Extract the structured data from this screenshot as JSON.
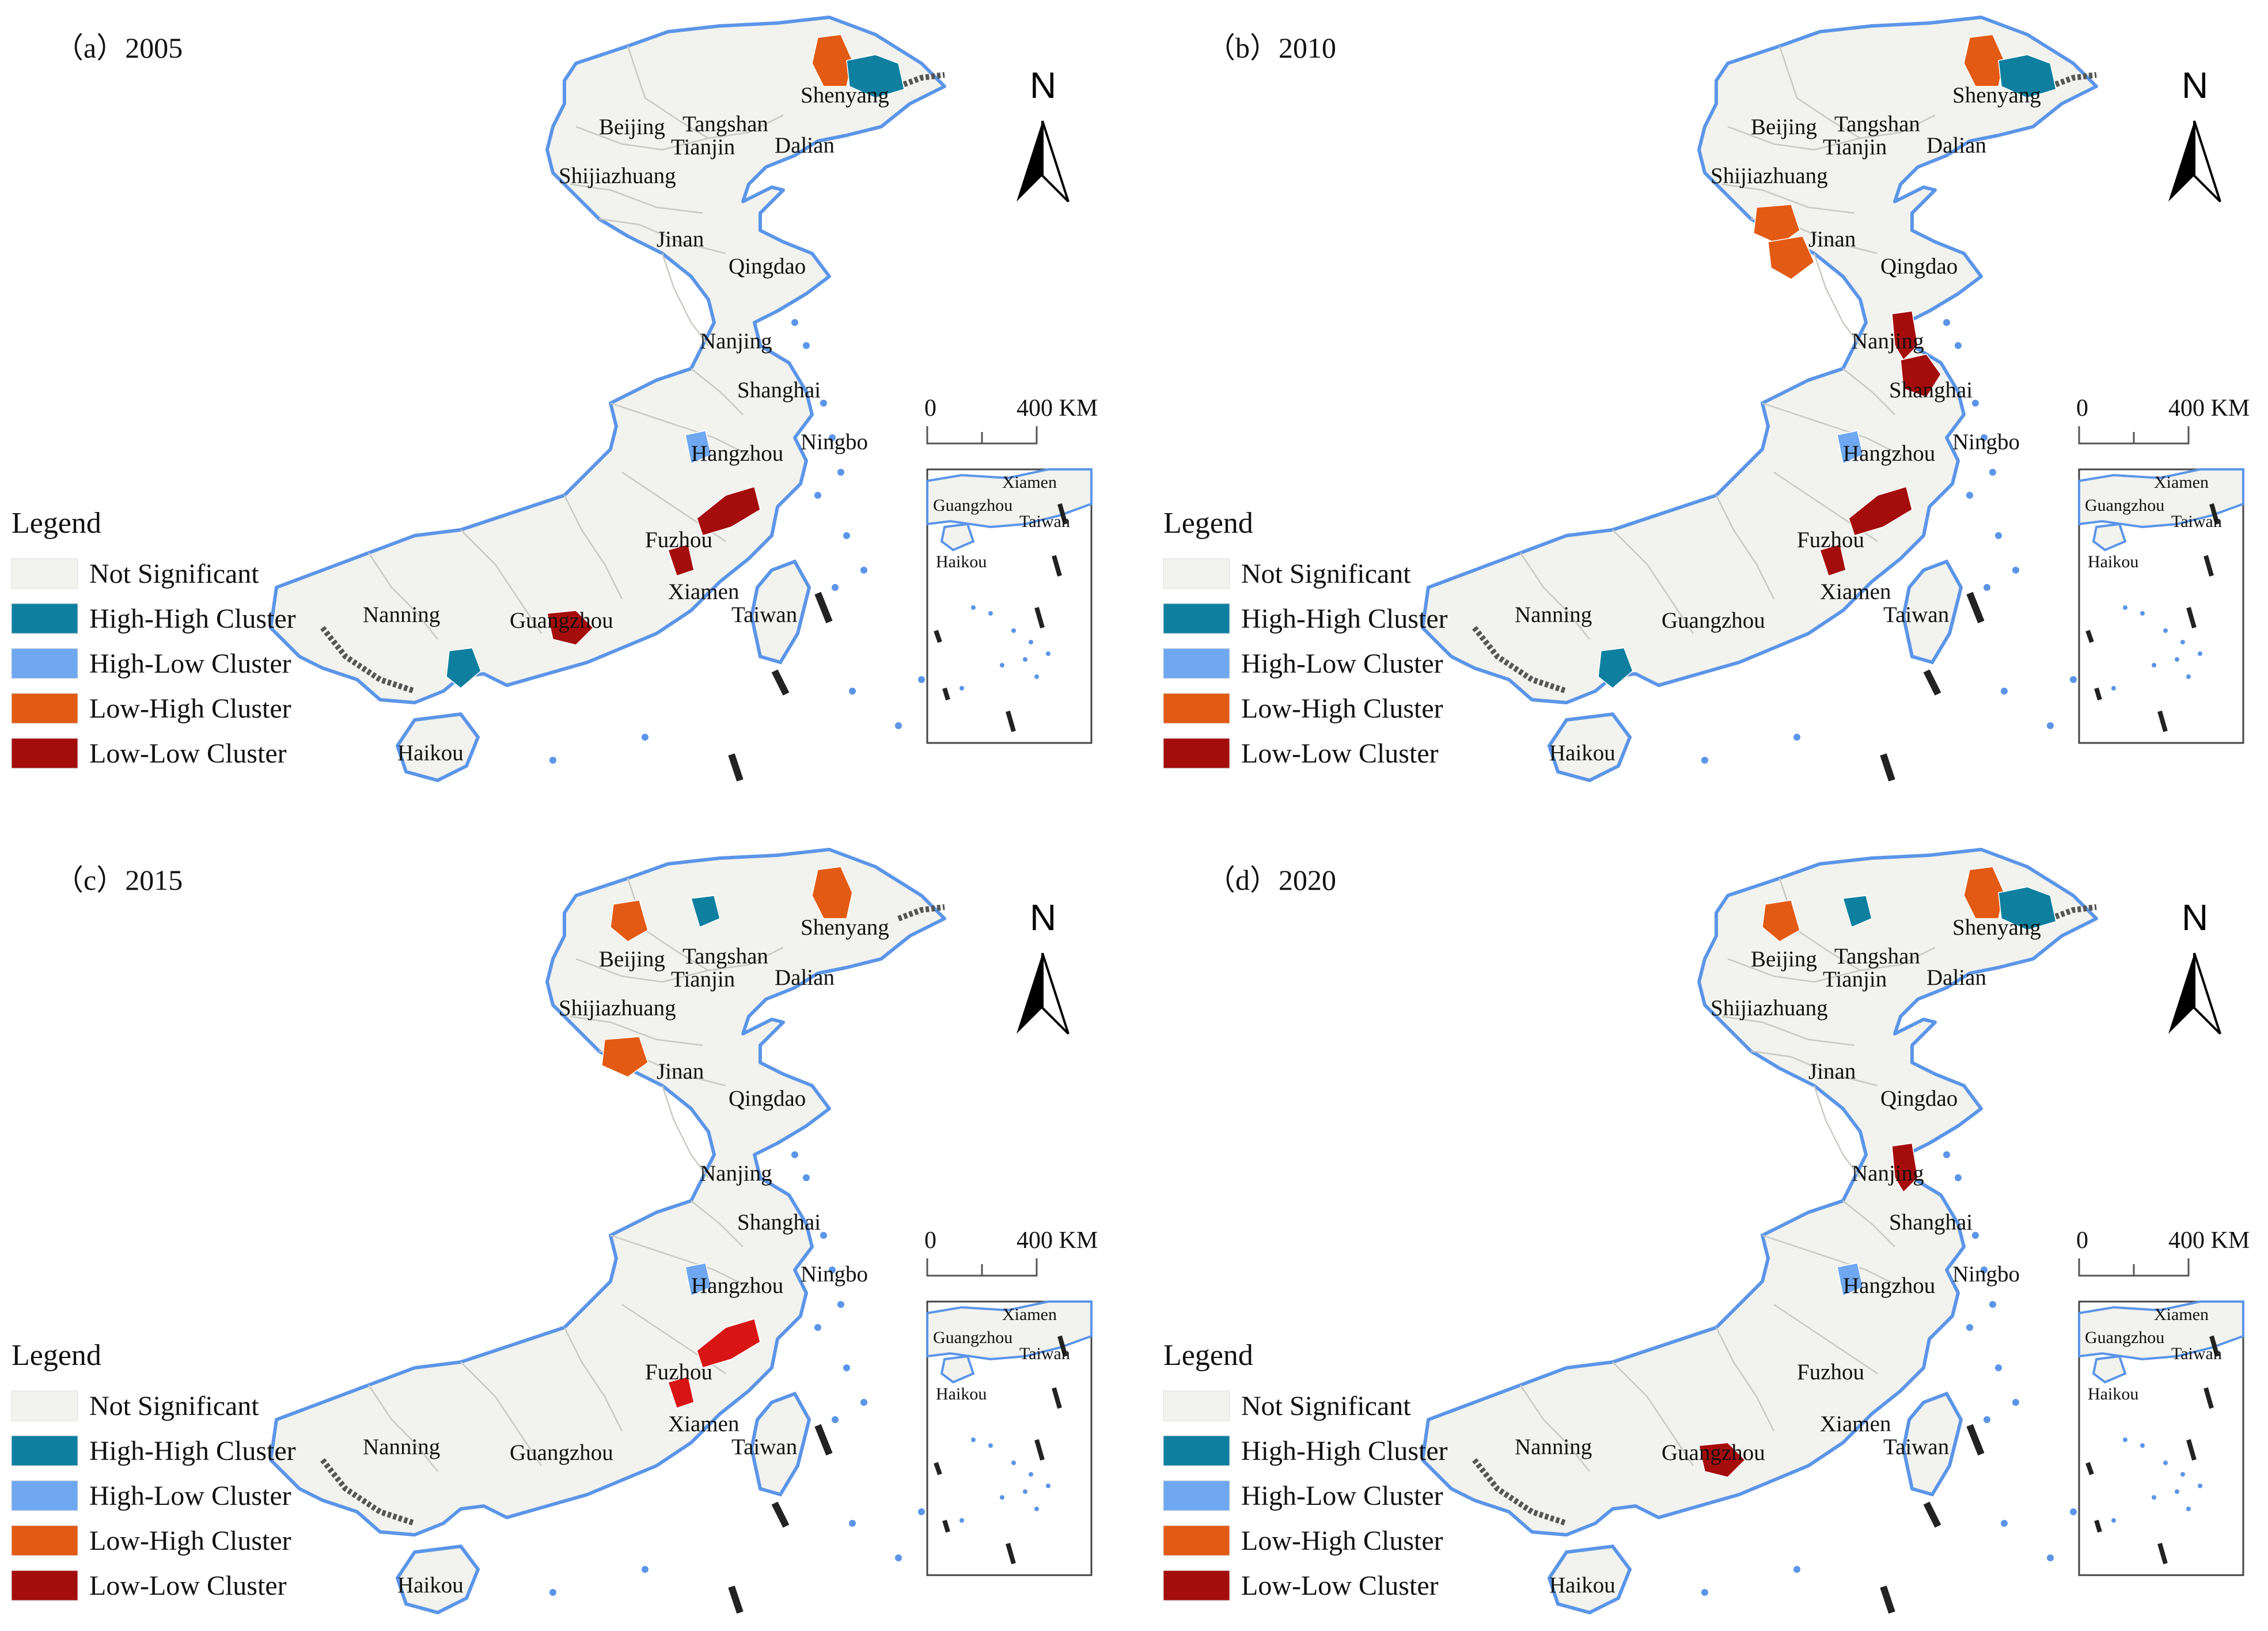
{
  "legend": {
    "title": "Legend",
    "items": [
      {
        "label": "Not Significant",
        "color": "#f2f2ee"
      },
      {
        "label": "High-High Cluster",
        "color": "#0f7fa0"
      },
      {
        "label": "High-Low Cluster",
        "color": "#6fa8f0"
      },
      {
        "label": "Low-High Cluster",
        "color": "#e35a14"
      },
      {
        "label": "Low-Low Cluster",
        "color": "#a50d0d"
      }
    ]
  },
  "colors": {
    "coastline": "#5b95e8",
    "boundary": "#c9c9c4",
    "land": "#f2f2ee",
    "not_significant": "#f2f2ee",
    "high_high": "#0f7fa0",
    "high_low": "#6fa8f0",
    "low_high": "#e35a14",
    "low_low": "#a50d0d",
    "low_low_bright": "#d81414"
  },
  "north_arrow": {
    "label": "N"
  },
  "scale_bar": {
    "start": "0",
    "end": "400 KM"
  },
  "panels": [
    {
      "id": "a",
      "title": "（a）2005",
      "cities": [
        "Shenyang",
        "Beijing",
        "Tangshan",
        "Tianjin",
        "Dalian",
        "Shijiazhuang",
        "Jinan",
        "Qingdao",
        "Nanjing",
        "Shanghai",
        "Ningbo",
        "Hangzhou",
        "Fuzhou",
        "Xiamen",
        "Taiwan",
        "Nanning",
        "Guangzhou",
        "Haikou"
      ],
      "inset_cities": [
        "Xiamen",
        "Guangzhou",
        "Taiwan",
        "Haikou"
      ],
      "clusters": {
        "Shenyang-west": "Low-High Cluster",
        "Shenyang-east": "High-High Cluster",
        "Hangzhou": "High-Low Cluster",
        "Fuzhou-north": "Low-Low Cluster",
        "Fuzhou-south": "Low-Low Cluster",
        "Guangzhou": "Low-Low Cluster",
        "Zhanjiang": "High-High Cluster"
      }
    },
    {
      "id": "b",
      "title": "（b）2010",
      "cities": [
        "Shenyang",
        "Beijing",
        "Tangshan",
        "Tianjin",
        "Dalian",
        "Shijiazhuang",
        "Jinan",
        "Qingdao",
        "Nanjing",
        "Shanghai",
        "Ningbo",
        "Hangzhou",
        "Fuzhou",
        "Xiamen",
        "Taiwan",
        "Nanning",
        "Guangzhou",
        "Haikou"
      ],
      "inset_cities": [
        "Xiamen",
        "Guangzhou",
        "Taiwan",
        "Haikou"
      ],
      "clusters": {
        "Shenyang-west": "Low-High Cluster",
        "Shenyang-east": "High-High Cluster",
        "Jinan-west": "Low-High Cluster",
        "Jinan-south": "Low-High Cluster",
        "Nanjing": "Low-Low Cluster",
        "Shanghai": "Low-Low Cluster",
        "Hangzhou": "High-Low Cluster",
        "Fuzhou-north": "Low-Low Cluster",
        "Fuzhou-south": "Low-Low Cluster",
        "Zhanjiang": "High-High Cluster"
      }
    },
    {
      "id": "c",
      "title": "（c）2015",
      "cities": [
        "Shenyang",
        "Beijing",
        "Tangshan",
        "Tianjin",
        "Dalian",
        "Shijiazhuang",
        "Jinan",
        "Qingdao",
        "Nanjing",
        "Shanghai",
        "Ningbo",
        "Hangzhou",
        "Fuzhou",
        "Xiamen",
        "Taiwan",
        "Nanning",
        "Guangzhou",
        "Haikou"
      ],
      "inset_cities": [
        "Xiamen",
        "Guangzhou",
        "Taiwan",
        "Haikou"
      ],
      "clusters": {
        "Shenyang-west": "Low-High Cluster",
        "Beijing": "Low-High Cluster",
        "Tangshan": "High-High Cluster",
        "Jinan-west": "Low-High Cluster",
        "Hangzhou": "High-Low Cluster",
        "Fuzhou-north": "Low-Low Cluster",
        "Fuzhou-south": "Low-Low Cluster"
      }
    },
    {
      "id": "d",
      "title": "（d）2020",
      "cities": [
        "Shenyang",
        "Beijing",
        "Tangshan",
        "Tianjin",
        "Dalian",
        "Shijiazhuang",
        "Jinan",
        "Qingdao",
        "Nanjing",
        "Shanghai",
        "Ningbo",
        "Hangzhou",
        "Fuzhou",
        "Xiamen",
        "Taiwan",
        "Nanning",
        "Guangzhou",
        "Haikou"
      ],
      "inset_cities": [
        "Xiamen",
        "Guangzhou",
        "Taiwan",
        "Haikou"
      ],
      "clusters": {
        "Shenyang-west": "Low-High Cluster",
        "Shenyang-east": "High-High Cluster",
        "Beijing": "Low-High Cluster",
        "Tangshan": "High-High Cluster",
        "Nanjing": "Low-Low Cluster",
        "Hangzhou": "High-Low Cluster",
        "Guangzhou": "Low-Low Cluster"
      }
    }
  ]
}
